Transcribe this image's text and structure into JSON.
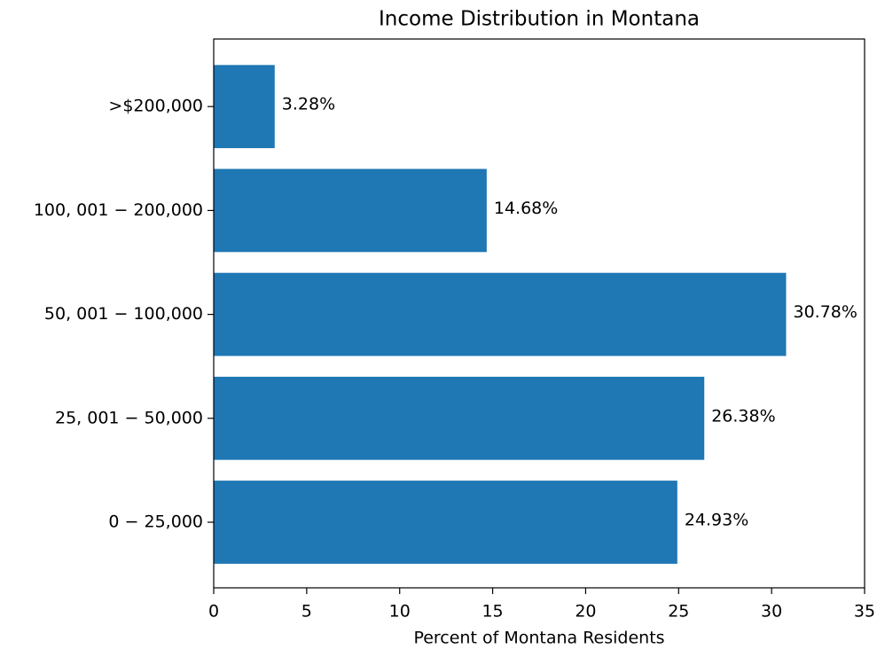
{
  "chart_data": {
    "type": "barh",
    "title": "Income Distribution in Montana",
    "xlabel": "Percent of Montana Residents",
    "categories": [
      "0 − 25,000",
      "25, 001 − 50,000",
      "50, 001 − 100,000",
      "100, 001 − 200,000",
      ">$200,000"
    ],
    "values": [
      24.93,
      26.38,
      30.78,
      14.68,
      3.28
    ],
    "value_labels": [
      "24.93%",
      "26.38%",
      "30.78%",
      "14.68%",
      "3.28%"
    ],
    "color": "#1f77b4",
    "xlim": [
      0,
      35
    ],
    "xticks": [
      0,
      5,
      10,
      15,
      20,
      25,
      30,
      35
    ]
  }
}
